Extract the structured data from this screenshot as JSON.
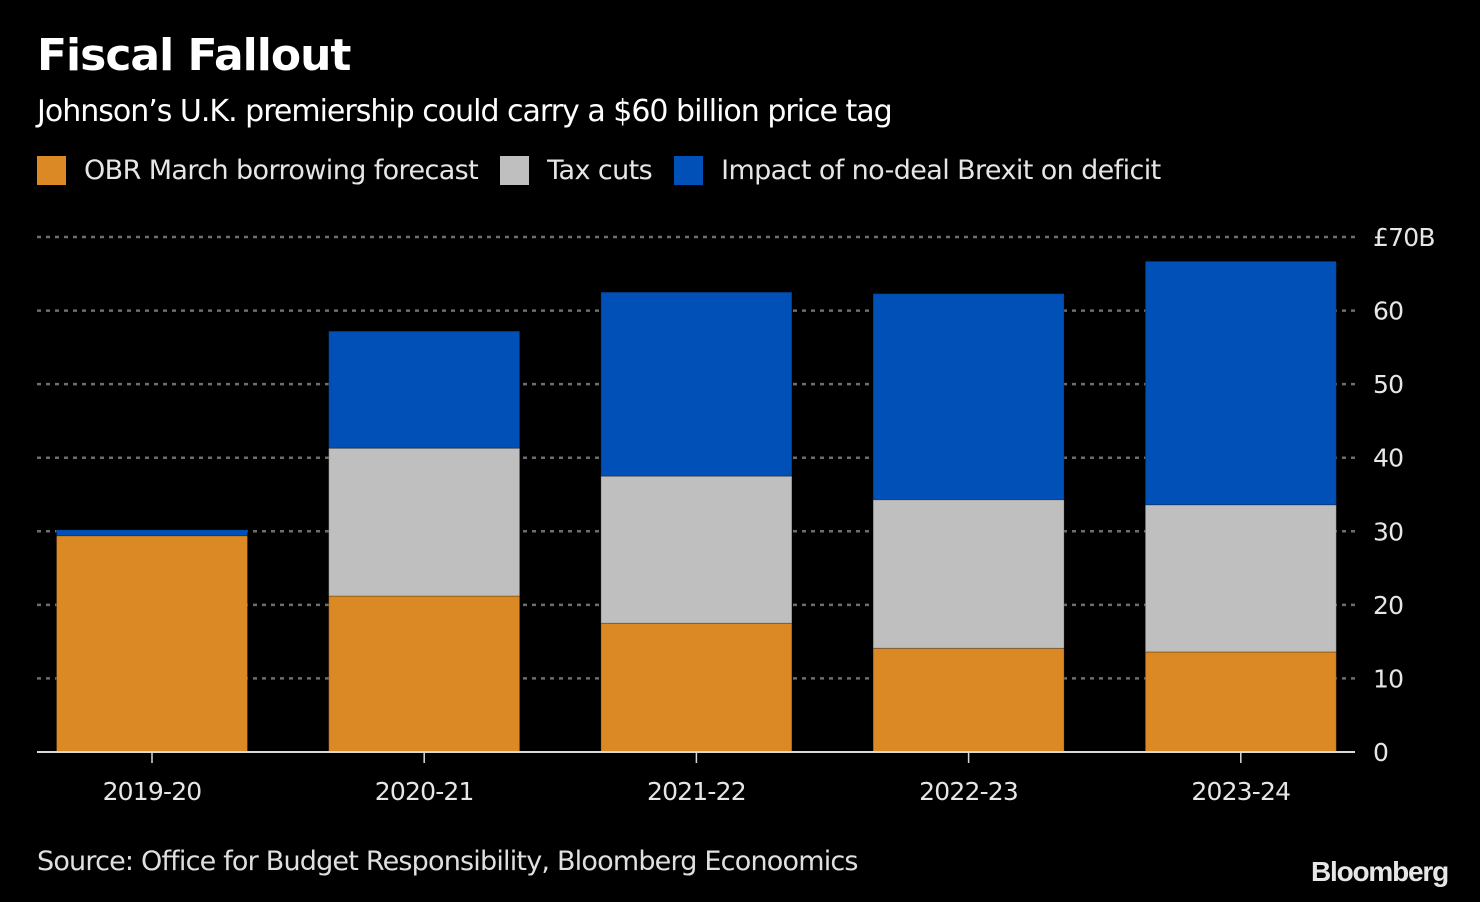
{
  "header": {
    "title": "Fiscal Fallout",
    "subtitle": "Johnson’s U.K. premiership could carry a $60 billion price tag"
  },
  "footer": {
    "source": "Source: Office for Budget Responsibility, Bloomberg Econoomics",
    "logo": "Bloomberg"
  },
  "colors": {
    "background": "#000000",
    "obr": "#DB8924",
    "tax_cuts": "#BFBFBF",
    "brexit": "#0050B8",
    "grid": "#6e6e6e",
    "axis": "#d9d9d9"
  },
  "chart_data": {
    "type": "bar",
    "stacked": true,
    "title": "Fiscal Fallout",
    "subtitle": "Johnson’s U.K. premiership could carry a $60 billion price tag",
    "xlabel": "",
    "ylabel": "",
    "categories": [
      "2019-20",
      "2020-21",
      "2021-22",
      "2022-23",
      "2023-24"
    ],
    "series": [
      {
        "name": "OBR March borrowing forecast",
        "color": "#DB8924",
        "values": [
          29.4,
          21.2,
          17.5,
          14.1,
          13.6
        ]
      },
      {
        "name": "Tax cuts",
        "color": "#BFBFBF",
        "values": [
          0,
          20.1,
          20.0,
          20.2,
          20.0
        ]
      },
      {
        "name": "Impact of no-deal Brexit on deficit",
        "color": "#0050B8",
        "values": [
          0.8,
          15.9,
          25.0,
          28.0,
          33.1
        ]
      }
    ],
    "ylim": [
      0,
      70
    ],
    "yticks": [
      0,
      10,
      20,
      30,
      40,
      50,
      60,
      70
    ],
    "ytick_labels": [
      "0",
      "10",
      "20",
      "30",
      "40",
      "50",
      "60",
      "£70B"
    ],
    "y_axis_side": "right",
    "grid": true,
    "grid_style": "dotted",
    "legend_position": "top-left"
  }
}
